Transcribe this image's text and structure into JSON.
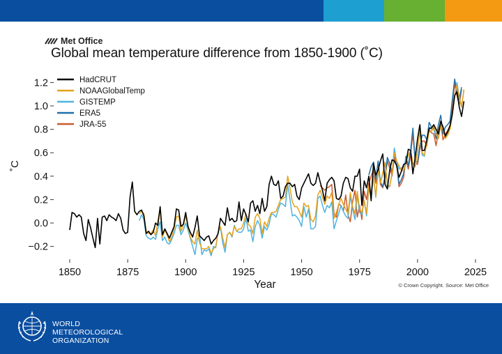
{
  "colors": {
    "top_main": "#0a4ea0",
    "top_seg_a": "#1e9fd1",
    "top_seg_b": "#67b032",
    "top_seg_c": "#f39a12",
    "footer": "#0a4ea0"
  },
  "header": {
    "logo_text": "Met Office"
  },
  "footer": {
    "org_lines": [
      "WORLD",
      "METEOROLOGICAL",
      "ORGANIZATION"
    ],
    "emblem_icon": "wmo-emblem-icon"
  },
  "copyright": "© Crown Copyright. Source: Met Office",
  "chart_data": {
    "type": "line",
    "title": "Global mean temperature difference from 1850-1900 (˚C)",
    "xlabel": "Year",
    "ylabel": "˚C",
    "xlim": [
      1850,
      2025
    ],
    "ylim": [
      -0.3,
      1.3
    ],
    "x_ticks": [
      1850,
      1875,
      1900,
      1925,
      1950,
      1975,
      2000,
      2025
    ],
    "y_ticks": [
      -0.2,
      0.0,
      0.2,
      0.4,
      0.6,
      0.8,
      1.0,
      1.2
    ],
    "y_tick_labels": [
      "−0.2",
      "0.0",
      "0.2",
      "0.4",
      "0.6",
      "0.8",
      "1.0",
      "1.2"
    ],
    "grid": false,
    "legend_position": "top-left",
    "series": [
      {
        "name": "HadCRUT",
        "color": "#000000",
        "start": 1850,
        "values": [
          -0.06,
          0.09,
          0.08,
          0.05,
          0.07,
          0.05,
          -0.09,
          -0.15,
          0.03,
          -0.04,
          -0.13,
          -0.21,
          0.04,
          -0.18,
          0.05,
          0.06,
          0.02,
          0.07,
          0.05,
          0.04,
          0.02,
          0.08,
          0.04,
          -0.06,
          -0.09,
          -0.08,
          0.22,
          0.35,
          0.1,
          0.07,
          0.1,
          0.11,
          0.06,
          -0.09,
          -0.07,
          -0.1,
          -0.08,
          0.0,
          -0.02,
          0.14,
          -0.1,
          -0.05,
          -0.09,
          -0.13,
          -0.08,
          -0.03,
          0.12,
          0.11,
          -0.03,
          -0.01,
          0.09,
          -0.03,
          -0.08,
          -0.12,
          -0.04,
          0.06,
          -0.11,
          -0.13,
          -0.15,
          -0.12,
          -0.11,
          -0.18,
          -0.15,
          -0.13,
          -0.09,
          0.04,
          0.01,
          -0.02,
          0.13,
          0.02,
          0.04,
          0.01,
          0.02,
          0.18,
          0.02,
          0.12,
          0.07,
          0.01,
          0.17,
          0.19,
          0.1,
          0.15,
          0.08,
          0.21,
          0.1,
          0.14,
          0.33,
          0.4,
          0.33,
          0.32,
          0.36,
          0.21,
          0.23,
          0.31,
          0.34,
          0.34,
          0.31,
          0.33,
          0.23,
          0.2,
          0.3,
          0.34,
          0.38,
          0.42,
          0.34,
          0.32,
          0.34,
          0.43,
          0.35,
          0.28,
          0.19,
          0.34,
          0.37,
          0.39,
          0.36,
          0.21,
          0.2,
          0.23,
          0.34,
          0.39,
          0.38,
          0.3,
          0.27,
          0.4,
          0.4,
          0.46,
          0.15,
          0.36,
          0.3,
          0.4,
          0.19,
          0.51,
          0.41,
          0.45,
          0.53,
          0.59,
          0.33,
          0.29,
          0.45,
          0.54,
          0.53,
          0.49,
          0.39,
          0.44,
          0.5,
          0.51,
          0.63,
          0.62,
          0.42,
          0.56,
          0.72,
          0.84,
          0.62,
          0.62,
          0.71,
          0.81,
          0.81,
          0.84,
          0.8,
          0.76,
          0.87,
          0.82,
          0.74,
          0.78,
          0.83,
          0.93,
          1.09,
          1.12,
          0.99,
          0.91,
          1.04
        ]
      },
      {
        "name": "NOAAGlobalTemp",
        "color": "#e5a11a",
        "start": 1880,
        "values": [
          0.08,
          0.1,
          0.08,
          -0.07,
          -0.09,
          -0.09,
          -0.06,
          -0.11,
          0.02,
          0.12,
          -0.12,
          -0.06,
          -0.1,
          -0.16,
          -0.12,
          -0.05,
          0.05,
          0.06,
          -0.07,
          -0.02,
          0.06,
          -0.02,
          -0.12,
          -0.16,
          -0.18,
          -0.06,
          -0.17,
          -0.22,
          -0.22,
          -0.22,
          -0.2,
          -0.26,
          -0.22,
          -0.2,
          -0.08,
          -0.03,
          -0.13,
          -0.21,
          -0.1,
          -0.08,
          -0.11,
          -0.03,
          -0.07,
          -0.05,
          -0.05,
          0.0,
          0.08,
          -0.01,
          -0.03,
          -0.09,
          0.05,
          0.08,
          0.04,
          -0.09,
          0.01,
          -0.03,
          0.04,
          0.09,
          0.09,
          0.1,
          0.15,
          0.2,
          0.21,
          0.22,
          0.4,
          0.3,
          0.18,
          0.14,
          0.14,
          0.1,
          0.05,
          0.17,
          0.14,
          0.15,
          0.03,
          0.01,
          0.06,
          0.24,
          0.28,
          0.22,
          0.16,
          0.23,
          0.21,
          0.26,
          0.04,
          0.09,
          0.16,
          0.21,
          0.16,
          0.12,
          0.08,
          0.26,
          0.14,
          0.08,
          0.27,
          0.12,
          0.09,
          0.19,
          0.08,
          0.31,
          0.25,
          0.39,
          0.23,
          0.47,
          0.34,
          0.43,
          0.52,
          0.33,
          0.31,
          0.43,
          0.6,
          0.53,
          0.49,
          0.45,
          0.45,
          0.51,
          0.58,
          0.62,
          0.51,
          0.48,
          0.62,
          0.8,
          0.6,
          0.58,
          0.68,
          0.78,
          0.78,
          0.83,
          0.76,
          0.72,
          0.83,
          0.8,
          0.72,
          0.75,
          0.8,
          0.92,
          1.08,
          1.18,
          1.07,
          0.99,
          1.14
        ]
      },
      {
        "name": "GISTEMP",
        "color": "#4eb3e0",
        "start": 1880,
        "values": [
          0.02,
          0.07,
          0.03,
          -0.11,
          -0.13,
          -0.14,
          -0.12,
          -0.14,
          -0.05,
          0.01,
          -0.15,
          -0.12,
          -0.17,
          -0.18,
          -0.14,
          -0.09,
          -0.02,
          -0.02,
          -0.1,
          -0.06,
          0.0,
          -0.06,
          -0.13,
          -0.2,
          -0.27,
          -0.14,
          -0.1,
          -0.27,
          -0.23,
          -0.24,
          -0.22,
          -0.28,
          -0.2,
          -0.21,
          -0.08,
          -0.04,
          -0.17,
          -0.25,
          -0.1,
          -0.08,
          -0.12,
          -0.02,
          -0.07,
          -0.08,
          -0.08,
          -0.05,
          0.04,
          -0.07,
          -0.06,
          -0.16,
          -0.03,
          0.02,
          -0.02,
          -0.13,
          -0.03,
          -0.06,
          -0.01,
          0.08,
          0.07,
          0.05,
          0.12,
          0.17,
          0.16,
          0.14,
          0.33,
          0.2,
          0.06,
          0.07,
          0.05,
          0.02,
          -0.03,
          0.14,
          0.05,
          0.12,
          -0.05,
          -0.05,
          -0.03,
          0.21,
          0.23,
          0.15,
          0.09,
          0.15,
          0.13,
          0.18,
          -0.05,
          0.02,
          0.08,
          0.15,
          0.1,
          0.06,
          0.04,
          0.23,
          0.12,
          0.03,
          0.24,
          0.09,
          0.07,
          0.19,
          0.06,
          0.3,
          0.22,
          0.4,
          0.22,
          0.45,
          0.34,
          0.42,
          0.52,
          0.31,
          0.31,
          0.42,
          0.64,
          0.52,
          0.46,
          0.47,
          0.47,
          0.55,
          0.58,
          0.61,
          0.51,
          0.48,
          0.63,
          0.79,
          0.58,
          0.57,
          0.72,
          0.82,
          0.8,
          0.8,
          0.75,
          0.76,
          0.86,
          0.82,
          0.74,
          0.77,
          0.81,
          0.92,
          1.08,
          1.2,
          1.08,
          0.99,
          1.14
        ]
      },
      {
        "name": "ERA5",
        "color": "#1f6fa8",
        "start": 1979,
        "values": [
          0.41,
          0.48,
          0.52,
          0.37,
          0.53,
          0.35,
          0.31,
          0.4,
          0.56,
          0.51,
          0.43,
          0.59,
          0.53,
          0.33,
          0.37,
          0.42,
          0.57,
          0.49,
          0.62,
          0.81,
          0.53,
          0.52,
          0.66,
          0.75,
          0.75,
          0.71,
          0.86,
          0.82,
          0.81,
          0.72,
          0.84,
          0.92,
          0.76,
          0.82,
          0.84,
          0.87,
          1.05,
          1.23,
          1.12,
          1.05,
          1.16
        ]
      },
      {
        "name": "JRA-55",
        "color": "#c95a2b",
        "start": 1958,
        "values": [
          0.32,
          0.3,
          0.28,
          0.3,
          0.31,
          0.33,
          0.08,
          0.05,
          0.16,
          0.15,
          0.1,
          0.24,
          0.07,
          0.01,
          0.18,
          0.28,
          0.05,
          0.15,
          0.03,
          0.27,
          0.2,
          0.34,
          0.4,
          0.46,
          0.34,
          0.5,
          0.33,
          0.3,
          0.38,
          0.53,
          0.47,
          0.4,
          0.56,
          0.5,
          0.31,
          0.34,
          0.39,
          0.55,
          0.46,
          0.58,
          0.77,
          0.52,
          0.5,
          0.63,
          0.7,
          0.7,
          0.66,
          0.8,
          0.77,
          0.76,
          0.66,
          0.79,
          0.86,
          0.71,
          0.76,
          0.79,
          0.83,
          1.01,
          1.19,
          1.09,
          1.01,
          1.14
        ]
      }
    ]
  }
}
